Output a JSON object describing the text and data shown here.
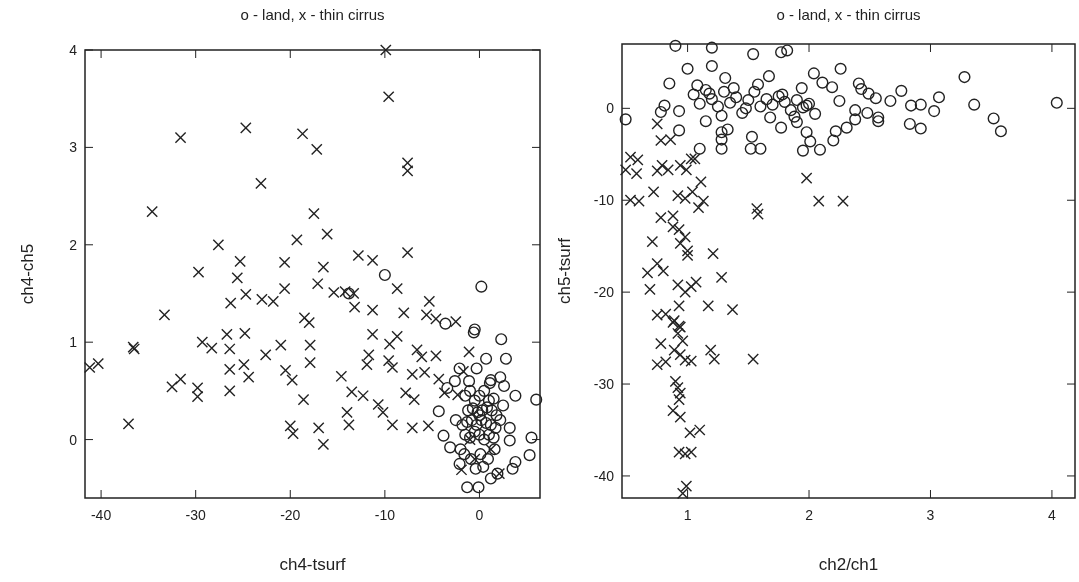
{
  "chart_data": [
    {
      "type": "scatter",
      "title": "o - land, x - thin cirrus",
      "xlabel": "ch4-tsurf",
      "ylabel": "ch4-ch5",
      "xlim": [
        -41.7,
        6.4
      ],
      "ylim": [
        -0.6,
        4
      ],
      "xticks": [
        -40,
        -30,
        -20,
        -10,
        0
      ],
      "yticks": [
        0,
        1,
        2,
        3,
        4
      ],
      "series": [
        {
          "color": "#222222",
          "marker": "circle",
          "x": [
            -10,
            0.2,
            -13.8,
            -3.6,
            -0.5,
            -0.6,
            2.3,
            0.7,
            2.8,
            2.2,
            3.8,
            6,
            5.3,
            5.5,
            -1.3,
            -0.1,
            -3.4,
            -4.3,
            -3.8,
            -3.1,
            -2.1,
            3.8,
            3.5,
            -2.1,
            -0.3,
            1.2,
            3.2,
            3.2,
            1.2,
            1.9,
            -1.5,
            -1,
            -0.5,
            0,
            0.5,
            1,
            1.5,
            -1.2,
            -0.7,
            -0.2,
            0.3,
            0.8,
            1.3,
            1.8,
            -1.8,
            -1.3,
            -0.8,
            -0.3,
            0.2,
            0.7,
            1.2,
            1.7,
            2.2,
            -1.5,
            -1,
            -0.5,
            0,
            0.5,
            1,
            1.5,
            -2.5,
            -2,
            2.5,
            -1.6,
            -0.9,
            0.1,
            0.9,
            1.6,
            -0.4,
            0.4,
            -2.6,
            2.6,
            -1.1,
            1.1,
            0
          ],
          "values": [
            1.69,
            1.57,
            1.5,
            1.19,
            1.13,
            1.1,
            1.03,
            0.83,
            0.83,
            0.64,
            0.45,
            0.41,
            -0.16,
            0.02,
            -0.49,
            -0.49,
            0.53,
            0.29,
            0.04,
            -0.08,
            -0.25,
            -0.23,
            -0.3,
            0.73,
            0.73,
            0.61,
            0.12,
            -0.01,
            -0.4,
            -0.35,
            0.45,
            0.5,
            0.4,
            0.45,
            0.5,
            0.4,
            0.42,
            0.3,
            0.32,
            0.28,
            0.3,
            0.33,
            0.3,
            0.25,
            0.15,
            0.18,
            0.2,
            0.15,
            0.2,
            0.17,
            0.15,
            0.12,
            0.2,
            0.05,
            0.02,
            0.08,
            0.05,
            0.0,
            0.05,
            0.02,
            0.2,
            -0.1,
            0.35,
            -0.15,
            -0.2,
            -0.15,
            -0.2,
            -0.1,
            -0.3,
            -0.28,
            0.6,
            0.55,
            0.6,
            0.58,
            0.25
          ]
        },
        {
          "color": "#222222",
          "marker": "cross",
          "x": [
            -9.9,
            -9.6,
            -31.6,
            -24.7,
            -18.7,
            -17.2,
            -7.6,
            -7.6,
            -23.1,
            -34.6,
            -17.5,
            -27.6,
            -19.3,
            -16.1,
            -12.8,
            -11.3,
            -7.6,
            -29.7,
            -25.3,
            -25.6,
            -20.6,
            -16.5,
            -17.1,
            -20.6,
            -24.7,
            -23,
            -21.8,
            -26.3,
            -15.4,
            -14.2,
            -13.3,
            -8.7,
            -5.3,
            -33.3,
            -18.5,
            -18,
            -13.2,
            -11.3,
            -8,
            -5.6,
            -4.6,
            -2.5,
            -36.6,
            -36.5,
            -40.3,
            -41.2,
            -29.3,
            -28.3,
            -26.7,
            -24.8,
            -26.4,
            -21,
            -22.6,
            -26.4,
            -24.9,
            -24.4,
            -26.4,
            -20.5,
            -19.8,
            -17.9,
            -17.9,
            -32.5,
            -31.6,
            -29.8,
            -29.8,
            -18.6,
            -14.6,
            -13.5,
            -12.3,
            -11.7,
            -11.9,
            -11.3,
            -9.5,
            -8.7,
            -9.6,
            -9.2,
            -10.7,
            -10.2,
            -9.2,
            -14,
            -13.8,
            -7.1,
            -5.4,
            -19.7,
            -20,
            -17,
            -16.5,
            -37.1,
            -6.6,
            -6.1,
            -7.1,
            -5.8,
            -7.8,
            -6.9,
            -4.6,
            -4.3,
            -3.7,
            -2.3,
            -1.7,
            -1.1,
            -1.9,
            2.1,
            -0.5,
            1.2,
            -1
          ],
          "values": [
            4.0,
            3.52,
            3.1,
            3.2,
            3.14,
            2.98,
            2.84,
            2.76,
            2.63,
            2.34,
            2.32,
            2.0,
            2.05,
            2.11,
            1.89,
            1.84,
            1.92,
            1.72,
            1.83,
            1.66,
            1.82,
            1.77,
            1.6,
            1.55,
            1.49,
            1.44,
            1.42,
            1.4,
            1.51,
            1.52,
            1.5,
            1.55,
            1.42,
            1.28,
            1.25,
            1.2,
            1.36,
            1.33,
            1.3,
            1.28,
            1.24,
            1.21,
            0.95,
            0.93,
            0.78,
            0.74,
            1.0,
            0.94,
            1.08,
            1.09,
            0.93,
            0.97,
            0.87,
            0.72,
            0.77,
            0.64,
            0.5,
            0.71,
            0.61,
            0.79,
            0.97,
            0.54,
            0.62,
            0.53,
            0.44,
            0.41,
            0.65,
            0.49,
            0.45,
            0.87,
            0.77,
            1.08,
            0.98,
            1.06,
            0.81,
            0.74,
            0.36,
            0.28,
            0.15,
            0.28,
            0.15,
            0.12,
            0.14,
            0.06,
            0.14,
            0.12,
            -0.05,
            0.16,
            0.92,
            0.85,
            0.67,
            0.69,
            0.48,
            0.41,
            0.86,
            0.62,
            0.48,
            0.46,
            0.7,
            0.9,
            -0.31,
            -0.35,
            -0.2,
            -0.1,
            0
          ]
        }
      ]
    },
    {
      "type": "scatter",
      "title": "o - land, x - thin cirrus",
      "xlabel": "ch2/ch1",
      "ylabel": "ch5-tsurf",
      "xlim": [
        0.46,
        4.19
      ],
      "ylim": [
        -42.4,
        7
      ],
      "xticks": [
        1,
        2,
        3,
        4
      ],
      "yticks": [
        0,
        -10,
        -20,
        -30,
        -40
      ],
      "series": [
        {
          "color": "#222222",
          "marker": "circle",
          "x": [
            0.85,
            1.0,
            1.2,
            0.9,
            1.2,
            1.54,
            1.77,
            1.82,
            1.31,
            1.67,
            1.94,
            2.04,
            2.11,
            2.19,
            2.26,
            2.25,
            2.41,
            2.43,
            2.49,
            2.55,
            2.67,
            2.76,
            2.84,
            2.92,
            3.07,
            3.03,
            2.83,
            2.92,
            3.28,
            3.36,
            3.52,
            3.58,
            4.04,
            0.49,
            2.57,
            2.57,
            2.48,
            2.38,
            2.38,
            2.31,
            2.22,
            2.2,
            2.09,
            2.01,
            1.98,
            1.95,
            1.9,
            1.77,
            1.6,
            1.52,
            1.53,
            1.28,
            1.28,
            1.28,
            1.33,
            1.1,
            0.93,
            1.15,
            0.78,
            0.81,
            0.93,
            1.05,
            1.1,
            1.15,
            1.2,
            1.25,
            1.3,
            1.35,
            1.4,
            1.45,
            1.5,
            1.55,
            1.6,
            1.65,
            1.7,
            1.75,
            1.8,
            1.85,
            1.9,
            1.95,
            2.0,
            2.05,
            1.08,
            1.18,
            1.28,
            1.38,
            1.48,
            1.58,
            1.68,
            1.78,
            1.88,
            1.98
          ],
          "values": [
            2.7,
            4.3,
            4.6,
            6.8,
            6.6,
            5.9,
            6.1,
            6.3,
            3.3,
            3.5,
            2.2,
            3.8,
            2.8,
            2.3,
            4.3,
            0.8,
            2.7,
            2.1,
            1.6,
            1.1,
            0.8,
            1.9,
            0.3,
            0.4,
            1.2,
            -0.3,
            -1.7,
            -2.2,
            3.4,
            0.4,
            -1.1,
            -2.5,
            0.6,
            -1.2,
            -1.0,
            -1.4,
            -0.5,
            -0.2,
            -1.2,
            -2.1,
            -2.5,
            -3.5,
            -4.5,
            -3.6,
            -2.6,
            -4.6,
            -1.5,
            -2.1,
            -4.4,
            -4.4,
            -3.1,
            -4.4,
            -3.4,
            -2.6,
            -2.3,
            -4.4,
            -2.4,
            -1.4,
            -0.4,
            0.3,
            -0.3,
            1.5,
            0.5,
            2.0,
            1.0,
            0.2,
            1.8,
            0.6,
            1.2,
            -0.5,
            0.9,
            1.8,
            0.2,
            1.0,
            0.4,
            1.3,
            0.7,
            -0.2,
            0.9,
            0.1,
            0.5,
            -0.6,
            2.5,
            1.6,
            -0.8,
            2.2,
            0.0,
            2.6,
            -1.0,
            1.5,
            -0.9,
            0.3
          ]
        },
        {
          "color": "#222222",
          "marker": "cross",
          "x": [
            0.75,
            0.78,
            0.86,
            0.53,
            0.59,
            0.58,
            0.75,
            0.79,
            0.84,
            0.94,
            0.99,
            1.06,
            1.11,
            0.53,
            0.6,
            0.72,
            0.92,
            0.98,
            1.04,
            1.13,
            1.09,
            0.78,
            0.88,
            0.88,
            0.93,
            0.98,
            0.94,
            1.0,
            0.71,
            1.21,
            1.0,
            0.75,
            0.8,
            0.67,
            0.69,
            0.92,
            0.98,
            1.03,
            1.07,
            1.28,
            1.17,
            1.37,
            0.93,
            0.75,
            0.82,
            0.88,
            0.94,
            0.89,
            0.93,
            0.92,
            0.96,
            0.78,
            0.89,
            0.94,
            0.75,
            0.82,
            0.98,
            1.03,
            1.19,
            1.22,
            1.54,
            0.9,
            0.92,
            0.94,
            0.93,
            0.88,
            0.94,
            1.02,
            1.1,
            0.93,
            0.98,
            1.03,
            0.99,
            0.96,
            1.98,
            2.08,
            2.28,
            1.57,
            1.58,
            1.03,
            0.49
          ],
          "values": [
            -1.7,
            -3.5,
            -3.4,
            -5.3,
            -5.6,
            -7.1,
            -6.8,
            -6.2,
            -6.7,
            -6.2,
            -6.7,
            -5.5,
            -8,
            -10,
            -10.1,
            -9.1,
            -9.5,
            -9.8,
            -9.1,
            -10.1,
            -10.8,
            -11.9,
            -11.7,
            -12.9,
            -13.2,
            -14,
            -14.7,
            -15.5,
            -14.5,
            -15.8,
            -16,
            -16.9,
            -17.7,
            -17.9,
            -19.7,
            -19.2,
            -20,
            -19.4,
            -18.9,
            -18.4,
            -21.5,
            -21.9,
            -21.5,
            -22.5,
            -22.4,
            -23.3,
            -23.8,
            -23.1,
            -23.7,
            -24.5,
            -25.3,
            -25.6,
            -26.3,
            -26.8,
            -27.9,
            -27.6,
            -27.4,
            -27.5,
            -26.3,
            -27.3,
            -27.3,
            -29.7,
            -30.4,
            -31,
            -31.7,
            -32.9,
            -33.6,
            -35.3,
            -35,
            -37.4,
            -37.6,
            -37.4,
            -41.1,
            -41.9,
            -7.6,
            -10.1,
            -10.1,
            -10.9,
            -11.5,
            -5.5,
            -6.7
          ]
        }
      ]
    }
  ]
}
